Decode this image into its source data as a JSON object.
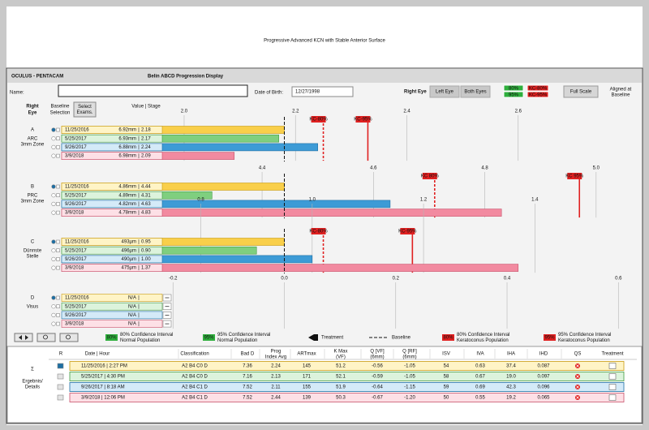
{
  "title": "Progressive Advanced KCN with Stable Anterior Surface",
  "app": {
    "brand": "OCULUS  -  PENTACAM",
    "display": "Belin ABCD Progression Display"
  },
  "patient": {
    "name_label": "Name:",
    "dob_label": "Date of Birth:",
    "dob": "12/27/1998"
  },
  "eye_buttons": [
    "Right Eye",
    "Left Eye",
    "Both Eyes"
  ],
  "ci_buttons": [
    "80%",
    "95%",
    "KC-80%",
    "KC-95%"
  ],
  "full_scale": "Full Scale",
  "aligned": [
    "Aligned at",
    "Baseline"
  ],
  "columns": {
    "eye": [
      "Right",
      "Eye"
    ],
    "baseline": [
      "Baseline",
      "Selection"
    ],
    "select": [
      "Select",
      "Exams."
    ],
    "value_stage": "Value | Stage"
  },
  "panels": [
    {
      "letter": "A",
      "label": [
        "ARC",
        "3mm Zone"
      ],
      "xlim": [
        1.78,
        2.8
      ],
      "ticks": [
        {
          "value": 2,
          "label": "2.0"
        },
        2.2,
        2.4,
        2.6
      ],
      "kc": [
        {
          "label": "KC-80%",
          "value": 2.25
        },
        {
          "label": "KC-95%",
          "value": 2.33
        }
      ],
      "rows": [
        {
          "date": "11/25/2016",
          "value": "6.92mm",
          "stage": 2.18
        },
        {
          "date": "5/25/2017",
          "value": "6.93mm",
          "stage": 2.17
        },
        {
          "date": "9/26/2017",
          "value": "6.88mm",
          "stage": 2.24
        },
        {
          "date": "3/9/2018",
          "value": "6.98mm",
          "stage": 2.09
        }
      ]
    },
    {
      "letter": "B",
      "label": [
        "PRC",
        "3mm Zone"
      ],
      "xlim": [
        4.04,
        5.06
      ],
      "ticks": [
        4.4,
        4.6,
        4.8,
        {
          "value": 5,
          "label": "5.0"
        }
      ],
      "kc": [
        {
          "label": "KC 80%",
          "value": 4.71
        },
        {
          "label": "KC 95%",
          "value": 4.97
        }
      ],
      "rows": [
        {
          "date": "11/25/2016",
          "value": "4.86mm",
          "stage": 4.44
        },
        {
          "date": "5/25/2017",
          "value": "4.89mm",
          "stage": 4.31
        },
        {
          "date": "9/26/2017",
          "value": "4.82mm",
          "stage": 4.63
        },
        {
          "date": "3/9/2018",
          "value": "4.78mm",
          "stage": 4.83
        }
      ]
    },
    {
      "letter": "C",
      "label": [
        "Dünnste",
        "Stelle"
      ],
      "xlim": [
        0.55,
        1.57
      ],
      "ticks": [
        0.8,
        {
          "value": 1,
          "label": "1.0"
        },
        1.2,
        1.4
      ],
      "kc": [
        {
          "label": "KC-80%",
          "value": 1.02
        },
        {
          "label": "KC-95%",
          "value": 1.18
        }
      ],
      "rows": [
        {
          "date": "11/25/2016",
          "value": "493µm",
          "stage": 0.95
        },
        {
          "date": "5/25/2017",
          "value": "496µm",
          "stage": 0.9,
          "stage_label": "0.90"
        },
        {
          "date": "9/26/2017",
          "value": "490µm",
          "stage": 1,
          "stage_label": "1.00"
        },
        {
          "date": "3/9/2018",
          "value": "475µm",
          "stage": 1.37
        }
      ]
    },
    {
      "letter": "D",
      "label": [
        "Visus"
      ],
      "xlim": [
        -0.4,
        0.62
      ],
      "ticks": [
        -0.2,
        {
          "value": 0,
          "label": "0.0"
        },
        0.2,
        0.4,
        0.6
      ],
      "kc": [],
      "rows": [
        {
          "date": "11/25/2016",
          "value": "N/A"
        },
        {
          "date": "5/25/2017",
          "value": "N/A"
        },
        {
          "date": "9/26/2017",
          "value": "N/A"
        },
        {
          "date": "3/9/2018",
          "value": "N/A"
        }
      ]
    }
  ],
  "legend": [
    {
      "box": "80%",
      "color": "#2eae3c",
      "text": [
        "80% Confidence Interval",
        "Normal Population"
      ]
    },
    {
      "box": "95%",
      "color": "#2eae3c",
      "text": [
        "95% Confidence Interval",
        "Normal Population"
      ]
    },
    {
      "text": [
        "Treatment"
      ]
    },
    {
      "text": [
        "Baseline"
      ]
    },
    {
      "box": "80%",
      "color": "#e02020",
      "text": [
        "80% Confidence Interval",
        "Keratoconus Population"
      ]
    },
    {
      "box": "95%",
      "color": "#e02020",
      "text": [
        "95% Confidence Interval",
        "Keratoconus Population"
      ]
    }
  ],
  "table": {
    "symbol": "Σ",
    "label": [
      "Ergebnis/",
      "Details"
    ],
    "headers": [
      [
        "R"
      ],
      [
        "Date | Hour"
      ],
      [
        "Classification"
      ],
      [
        "Bad D"
      ],
      [
        "Prog",
        "Index Avg"
      ],
      [
        "ARTmax"
      ],
      [
        "K Max",
        "(VF)"
      ],
      [
        "Q [VF]",
        "(6mm)"
      ],
      [
        "Q [RF]",
        "(6mm)"
      ],
      [
        "ISV"
      ],
      [
        "IVA"
      ],
      [
        "IHA"
      ],
      [
        "IHD"
      ],
      [
        "QS"
      ],
      [
        "Treatment"
      ]
    ],
    "rows": [
      [
        "11/25/2016 | 2:27 PM",
        "A2 B4 C0 D",
        "7.36",
        "2.24",
        "145",
        "51.2",
        "-0.56",
        "-1.05",
        "54",
        "0.63",
        "37.4",
        "0.087"
      ],
      [
        "5/25/2017 | 4:30 PM",
        "A2 B4 C0 D",
        "7.16",
        "2.13",
        "171",
        "52.1",
        "-0.59",
        "-1.05",
        "58",
        "0.67",
        "19.0",
        "0.097"
      ],
      [
        "9/26/2017 | 8:18 AM",
        "A2 B4 C1 D",
        "7.52",
        "2.11",
        "155",
        "51.9",
        "-0.64",
        "-1.15",
        "59",
        "0.69",
        "42.3",
        "0.096"
      ],
      [
        "3/9/2018 | 12:06 PM",
        "A2 B4 C1 D",
        "7.52",
        "2.44",
        "139",
        "50.3",
        "-0.67",
        "-1.20",
        "50",
        "0.55",
        "19.2",
        "0.065"
      ]
    ]
  }
}
